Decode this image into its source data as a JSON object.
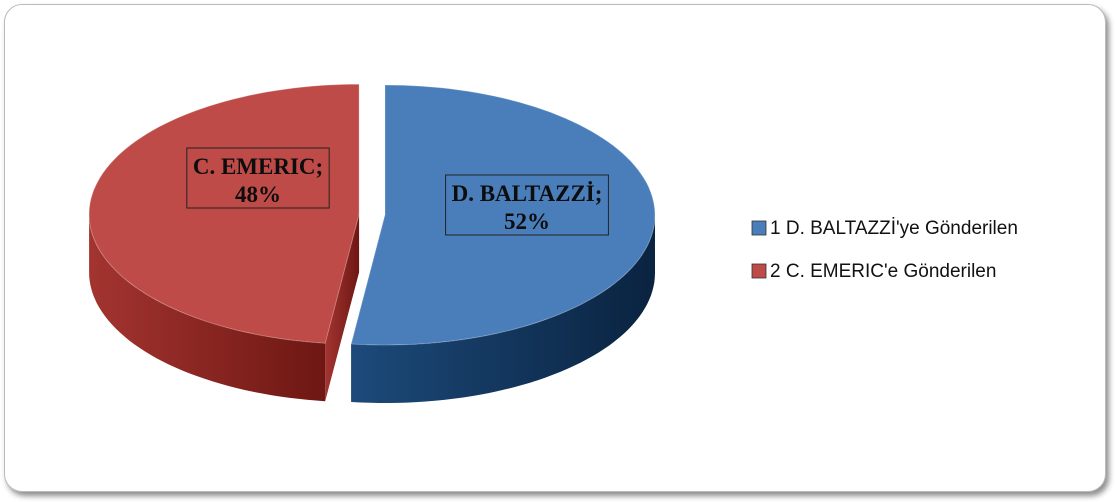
{
  "chart_data": {
    "type": "pie3d",
    "categories": [
      "1 D. BALTAZZİ'ye Gönderilen",
      "2 C. EMERIC'e Gönderilen"
    ],
    "labels": [
      "D. BALTAZZİ;",
      "C. EMERIC;"
    ],
    "values": [
      52,
      48
    ],
    "value_labels": [
      "52%",
      "48%"
    ],
    "colors": [
      "#4a7ebb",
      "#be4b48"
    ],
    "legend": "right"
  }
}
